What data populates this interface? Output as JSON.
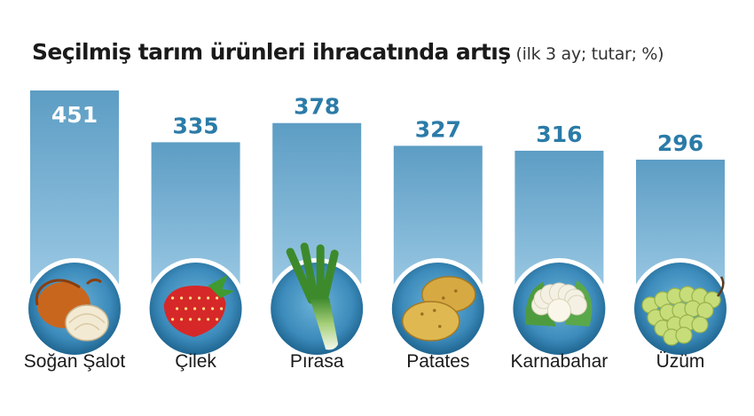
{
  "title": "Seçilmiş tarım ürünleri ihracatında artış",
  "subtitle": "(ilk 3 ay; tutar; %)",
  "colors": {
    "bar_top": "#5d9dc4",
    "bar_bottom": "#9fcce6",
    "value_in_bar": "#ffffff",
    "value_above_bar": "#2b7ba8",
    "circle_outer": "#1f6590",
    "circle_inner": "#6cb3d8"
  },
  "chart_data": {
    "type": "bar",
    "categories": [
      "Soğan Şalot",
      "Çilek",
      "Pırasa",
      "Patates",
      "Karnabahar",
      "Üzüm"
    ],
    "values": [
      451,
      335,
      378,
      327,
      316,
      296
    ],
    "icons": [
      "onion-icon",
      "strawberry-icon",
      "leek-icon",
      "potato-icon",
      "cauliflower-icon",
      "grape-icon"
    ],
    "xlabel": "",
    "ylabel": "",
    "ylim": [
      0,
      451
    ],
    "grid": false,
    "legend": "none"
  }
}
